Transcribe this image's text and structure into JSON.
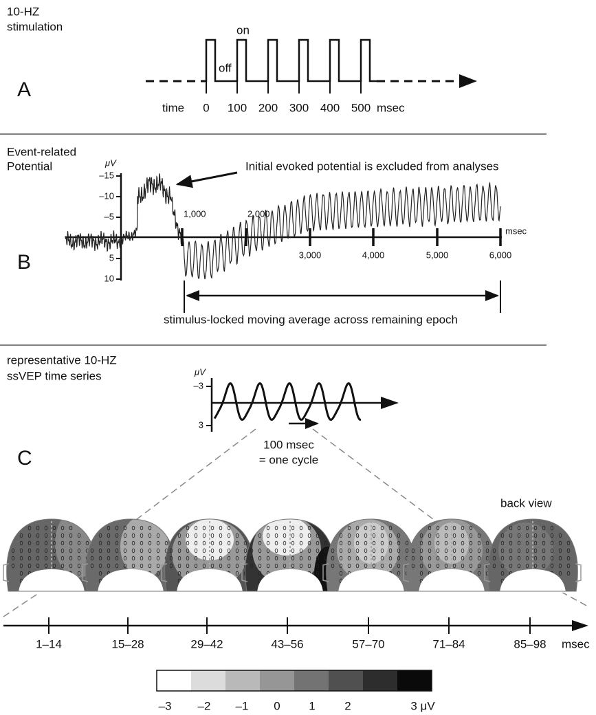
{
  "panel_a": {
    "label": "A",
    "title": [
      "10-HZ",
      "stimulation"
    ],
    "on": "on",
    "off": "off",
    "time": "time",
    "ticks": [
      "0",
      "100",
      "200",
      "300",
      "400",
      "500"
    ],
    "unit": "msec"
  },
  "panel_b": {
    "label": "B",
    "title": [
      "Event-related",
      "Potential"
    ],
    "y_unit": "μV",
    "y_ticks": [
      "–15",
      "–10",
      "–5",
      "5",
      "10"
    ],
    "x_ticks": [
      "1,000",
      "2,000",
      "3,000",
      "4,000",
      "5,000",
      "6,000"
    ],
    "x_unit": "msec",
    "annotation": "Initial evoked potential is excluded from analyses",
    "bracket_label": "stimulus-locked moving average across remaining epoch"
  },
  "panel_c": {
    "label": "C",
    "title": [
      "representative 10-HZ",
      "ssVEP time series"
    ],
    "y_unit": "μV",
    "y_ticks": [
      "–3",
      "3"
    ],
    "cycle": [
      "100 msec",
      "= one cycle"
    ],
    "view": "back view",
    "bins": [
      "1–14",
      "15–28",
      "29–42",
      "43–56",
      "57–70",
      "71–84",
      "85–98"
    ],
    "unit": "msec",
    "colorbar": {
      "colors": [
        "#ffffff",
        "#dcdcdc",
        "#b9b9b9",
        "#969696",
        "#737373",
        "#505050",
        "#2d2d2d",
        "#0a0a0a"
      ],
      "labels": [
        "–3",
        "–2",
        "–1",
        "0",
        "1",
        "2",
        "3 μV"
      ]
    }
  }
}
